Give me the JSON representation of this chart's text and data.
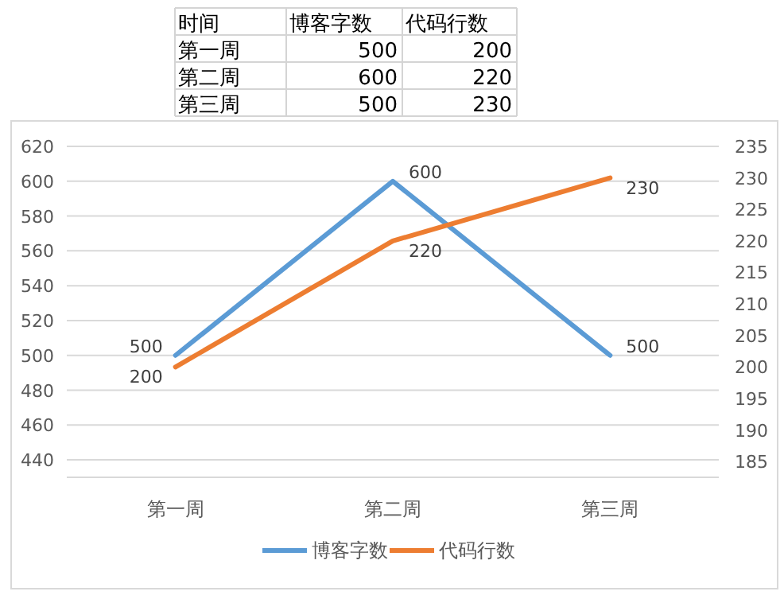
{
  "chart_data": {
    "type": "line",
    "categories": [
      "第一周",
      "第二周",
      "第三周"
    ],
    "series": [
      {
        "name": "博客字数",
        "color": "#5b9bd5",
        "values": [
          500,
          600,
          500
        ]
      },
      {
        "name": "代码行数",
        "color": "#ed7d31",
        "values": [
          200,
          220,
          230
        ],
        "axis": "y2"
      }
    ],
    "ylim": [
      430,
      620
    ],
    "yticks": [
      440,
      460,
      480,
      500,
      520,
      540,
      560,
      580,
      600,
      620
    ],
    "y2lim": [
      182.5,
      235
    ],
    "y2ticks": [
      185,
      190,
      195,
      200,
      205,
      210,
      215,
      220,
      225,
      230,
      235
    ],
    "grid": "y",
    "legend": "bottom",
    "data_labels": true,
    "marker": "none",
    "line_style": "solid",
    "annotations": [
      "时间",
      "500",
      "200",
      "600",
      "220",
      "500",
      "230"
    ]
  }
}
